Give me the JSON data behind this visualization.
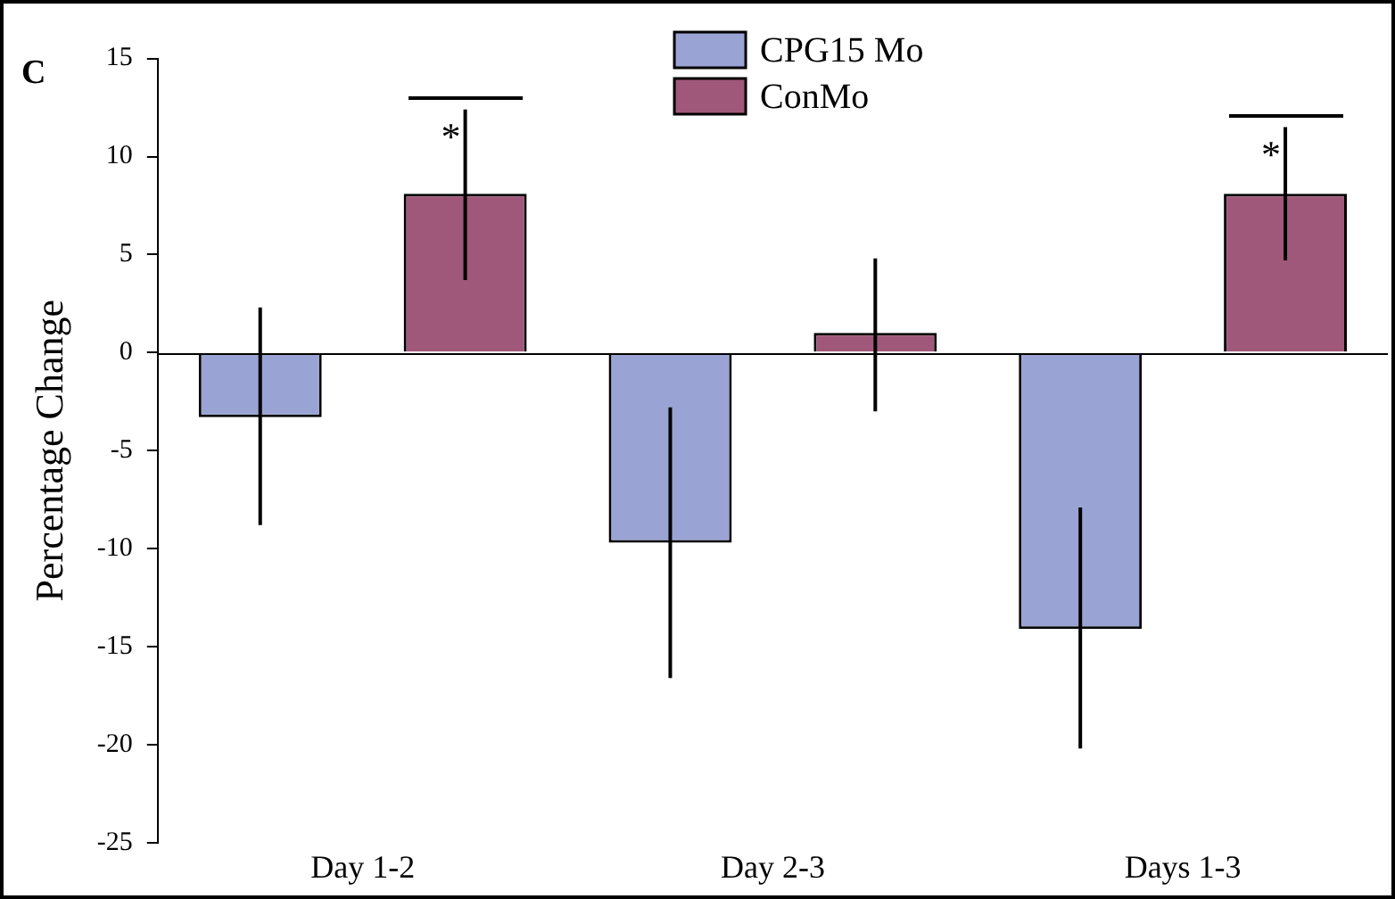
{
  "chart_data": {
    "type": "bar",
    "title": "C",
    "ylabel": "Percentage Change",
    "categories": [
      "Day 1-2",
      "Day 2-3",
      "Days 1-3"
    ],
    "series": [
      {
        "name": "CPG15 Mo",
        "color": "#9aa4d4",
        "values": [
          -3.3,
          -9.7,
          -14.1
        ],
        "errors": [
          [
            -8.8,
            2.3
          ],
          [
            -16.6,
            -2.8
          ],
          [
            -20.2,
            -7.9
          ]
        ]
      },
      {
        "name": "ConMo",
        "color": "#a0587a",
        "values": [
          8.1,
          1.0,
          8.1
        ],
        "errors": [
          [
            3.7,
            12.4
          ],
          [
            -3.0,
            4.8
          ],
          [
            4.7,
            11.5
          ]
        ]
      }
    ],
    "annotations": [
      "*",
      "*"
    ],
    "ref_lines": [
      {
        "axis": "y",
        "value": 0,
        "color": "#000000"
      }
    ],
    "ylim": [
      -25,
      15
    ],
    "yticks": [
      -25,
      -20,
      -15,
      -10,
      -5,
      0,
      5,
      10,
      15
    ],
    "grid": false,
    "legend": "top"
  }
}
